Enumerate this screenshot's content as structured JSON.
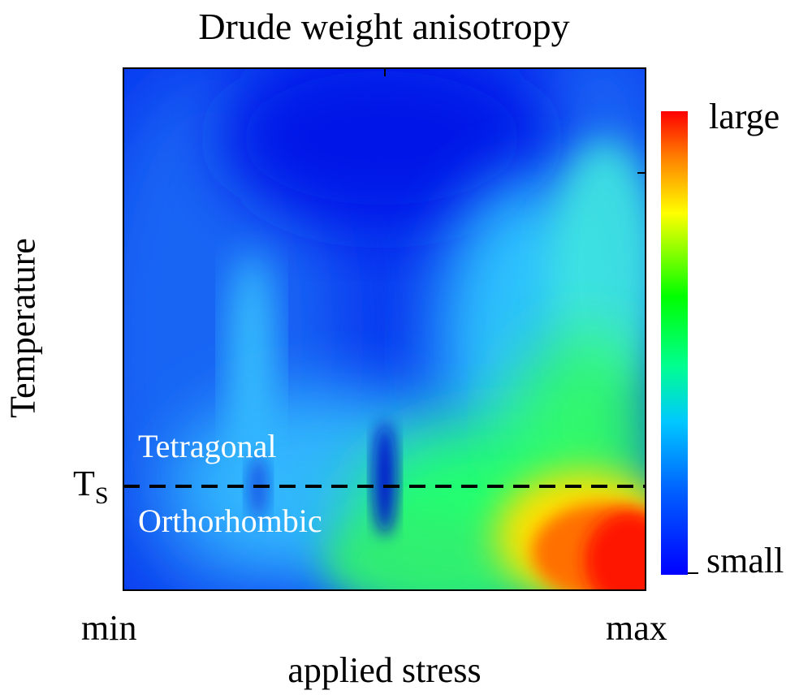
{
  "chart_data": {
    "type": "heatmap",
    "title": "Drude weight anisotropy",
    "xlabel": "applied stress",
    "ylabel": "Temperature",
    "x_tick_labels": [
      "min",
      "max"
    ],
    "y_tick_labels": [
      {
        "main": "T",
        "sub": "S"
      }
    ],
    "transition_line": "T_S (dashed)",
    "regions": [
      {
        "label": "Tetragonal",
        "position": "above T_S"
      },
      {
        "label": "Orthorhombic",
        "position": "below T_S"
      }
    ],
    "colorbar": {
      "max_label": "large",
      "min_label": "small",
      "colormap": [
        "#0000ff",
        "#00b4ff",
        "#00ffff",
        "#00ff00",
        "#ffff00",
        "#ff8000",
        "#ff0000"
      ]
    },
    "grid": false,
    "description_values": {
      "low_stress_low_temp": "small",
      "high_stress_low_temp": "large"
    }
  }
}
